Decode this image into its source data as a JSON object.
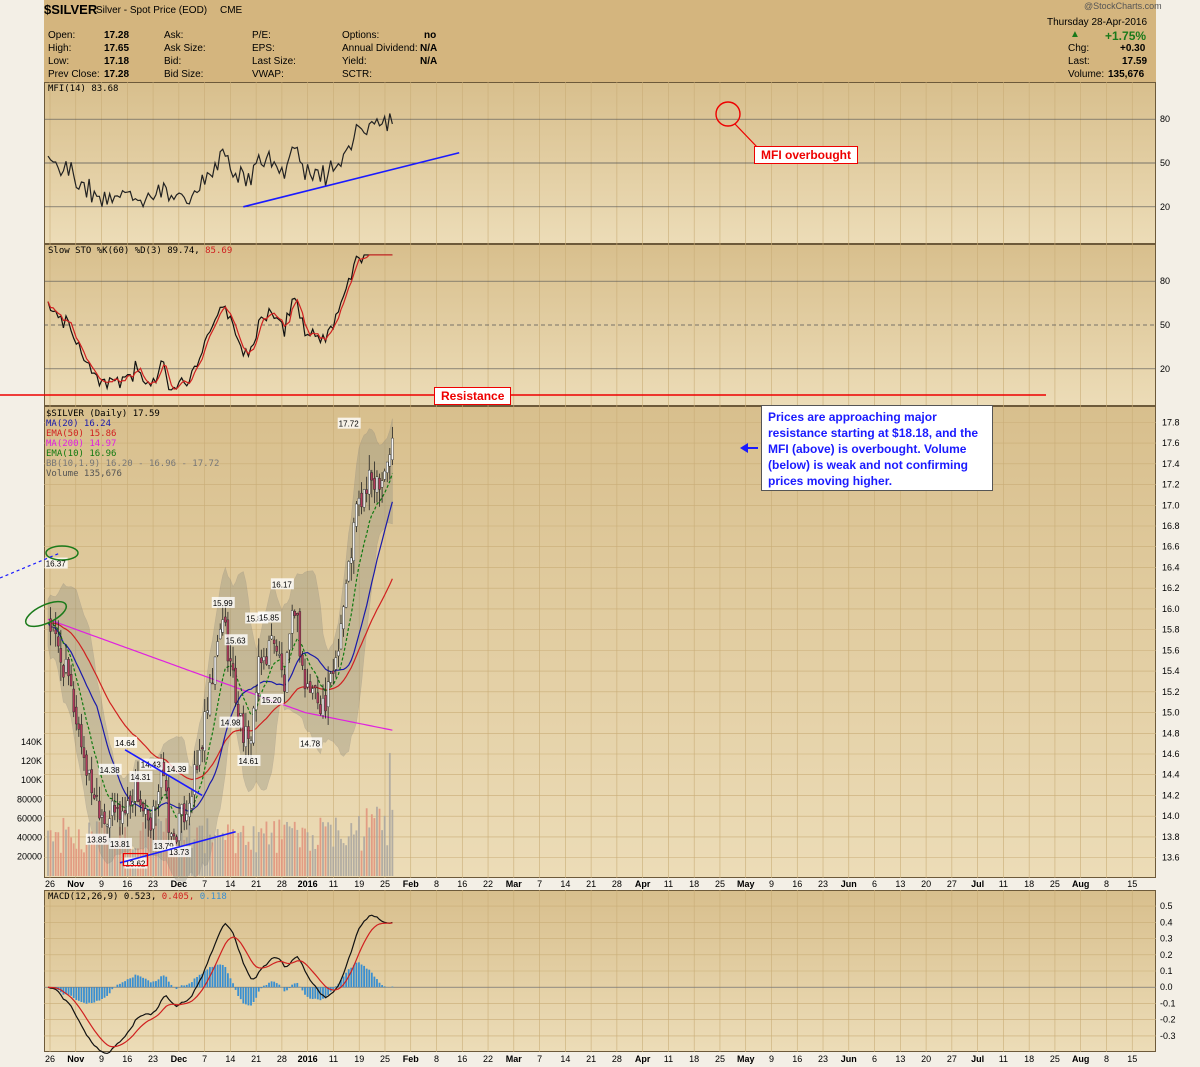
{
  "header": {
    "symbol": "$SILVER",
    "subtitle": "Silver - Spot Price (EOD)",
    "exchange": "CME",
    "watermark": "@StockCharts.com",
    "date": "Thursday  28-Apr-2016",
    "change_pct": "+1.75%",
    "change_arrow": "▲",
    "chg_label": "Chg:",
    "chg_value": "+0.30",
    "last_label": "Last:",
    "last_value": "17.59",
    "volume_label": "Volume:",
    "volume_value": "135,676",
    "stats": [
      {
        "label": "Open:",
        "value": "17.28"
      },
      {
        "label": "High:",
        "value": "17.65"
      },
      {
        "label": "Low:",
        "value": "17.18"
      },
      {
        "label": "Prev Close:",
        "value": "17.28"
      }
    ],
    "col2": [
      "Ask:",
      "Ask Size:",
      "Bid:",
      "Bid Size:"
    ],
    "col3": [
      "P/E:",
      "EPS:",
      "Last Size:",
      "VWAP:"
    ],
    "col4": [
      {
        "label": "Options:",
        "value": "no"
      },
      {
        "label": "Annual Dividend:",
        "value": "N/A"
      },
      {
        "label": "Yield:",
        "value": "N/A"
      },
      {
        "label": "SCTR:",
        "value": ""
      }
    ]
  },
  "panels": {
    "mfi": {
      "label": "MFI(14) 83.68",
      "levels": [
        "80",
        "50",
        "20"
      ]
    },
    "sto": {
      "label": "Slow STO %K(60) %D(3) 89.74,",
      "label2": "85.69",
      "levels": [
        "80",
        "50",
        "20"
      ]
    },
    "price": {
      "legend": [
        "$SILVER (Daily) 17.59",
        "MA(20) 16.24",
        "EMA(50) 15.86",
        "MA(200) 14.97",
        "EMA(10) 16.96",
        "BB(10,1.9) 16.20 - 16.96 - 17.72",
        "Volume 135,676"
      ],
      "price_ticks": [
        "17.8",
        "17.6",
        "17.4",
        "17.2",
        "17.0",
        "16.8",
        "16.6",
        "16.4",
        "16.2",
        "16.0",
        "15.8",
        "15.6",
        "15.4",
        "15.2",
        "15.0",
        "14.8",
        "14.6",
        "14.4",
        "14.2",
        "14.0",
        "13.8",
        "13.6"
      ],
      "volume_ticks": [
        "140K",
        "120K",
        "100K",
        "80000",
        "60000",
        "40000",
        "20000"
      ]
    },
    "macd": {
      "label": "MACD(12,26,9) 0.523,",
      "label2": "0.405,",
      "label3": "0.118",
      "ticks": [
        "0.5",
        "0.4",
        "0.3",
        "0.2",
        "0.1",
        "0.0",
        "-0.1",
        "-0.2",
        "-0.3"
      ]
    }
  },
  "date_axis": [
    "26",
    "Nov",
    "9",
    "16",
    "23",
    "Dec",
    "7",
    "14",
    "21",
    "28",
    "2016",
    "11",
    "19",
    "25",
    "Feb",
    "8",
    "16",
    "22",
    "Mar",
    "7",
    "14",
    "21",
    "28",
    "Apr",
    "11",
    "18",
    "25",
    "May",
    "9",
    "16",
    "23",
    "Jun",
    "6",
    "13",
    "20",
    "27",
    "Jul",
    "11",
    "18",
    "25",
    "Aug",
    "8",
    "15"
  ],
  "annotations": {
    "mfi_overbought": "MFI overbought",
    "resistance": "Resistance",
    "callout": "Prices are approaching major resistance starting at $18.18, and the MFI (above) is overbought. Volume (below) is weak and not confirming prices moving higher."
  },
  "colors": {
    "header_bg": "#d4b57e",
    "panel_bg": "#dcc495",
    "ma20": "#1a1aaa",
    "ema50": "#d02020",
    "ma200": "#e020e0",
    "ema10": "#107a10",
    "up": "#f5f5f5",
    "down": "#b03a5b",
    "macd_hist": "#3a8fd0",
    "annotation_blue": "#1a1aff",
    "annotation_red": "#e00000"
  },
  "chart_data": {
    "type": "candlestick",
    "title": "$SILVER Silver - Spot Price (EOD)",
    "price_labels": [
      {
        "date": "2015-10-28",
        "value": 16.37
      },
      {
        "date": "2015-12-04",
        "value": 13.81
      },
      {
        "date": "2015-12-07",
        "value": 14.64
      },
      {
        "date": "2015-12-10",
        "value": 14.38
      },
      {
        "date": "2015-12-14",
        "value": 13.62
      },
      {
        "date": "2015-12-18",
        "value": 14.31
      },
      {
        "date": "2015-12-23",
        "value": 14.43
      },
      {
        "date": "2015-12-30",
        "value": 13.79
      },
      {
        "date": "2016-01-07",
        "value": 14.39
      },
      {
        "date": "2016-01-08",
        "value": 13.73
      },
      {
        "date": "2015-11-25",
        "value": 13.85
      },
      {
        "date": "2016-02-11",
        "value": 15.99
      },
      {
        "date": "2016-02-17",
        "value": 14.98
      },
      {
        "date": "2016-02-19",
        "value": 15.63
      },
      {
        "date": "2016-03-01",
        "value": 14.61
      },
      {
        "date": "2016-03-04",
        "value": 15.84
      },
      {
        "date": "2016-03-11",
        "value": 15.85
      },
      {
        "date": "2016-03-14",
        "value": 15.2
      },
      {
        "date": "2016-03-18",
        "value": 16.17
      },
      {
        "date": "2016-04-01",
        "value": 14.78
      },
      {
        "date": "2016-04-22",
        "value": 17.72
      }
    ],
    "last": 17.59,
    "yrange_price": [
      13.5,
      17.9
    ],
    "yrange_mfi": [
      0,
      100
    ],
    "yrange_sto": [
      0,
      100
    ],
    "yrange_macd": [
      -0.35,
      0.55
    ],
    "resistance_level": 18.18
  }
}
